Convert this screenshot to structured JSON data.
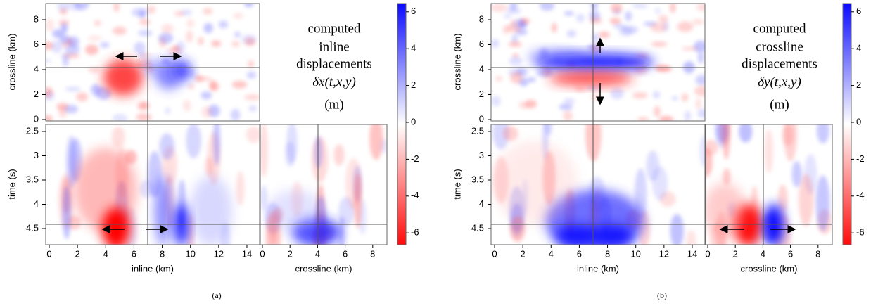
{
  "panels": [
    {
      "caption": "(a)",
      "annotation": [
        "computed",
        "inline",
        "displacements",
        "δx(t,x,y)",
        "(m)"
      ],
      "inline_label": "inline (km)",
      "crossline_label": "crossline (km)",
      "time_label": "time (s)",
      "inline_ticks": [
        "0",
        "2",
        "4",
        "6",
        "8",
        "10",
        "12",
        "14"
      ],
      "crossline_ticks": [
        "0",
        "2",
        "4",
        "6",
        "8"
      ],
      "time_ticks": [
        "2.5",
        "3",
        "3.5",
        "4",
        "4.5"
      ],
      "colorbar_ticks": [
        "6",
        "4",
        "2",
        "0",
        "-2",
        "-4",
        "-6"
      ]
    },
    {
      "caption": "(b)",
      "annotation": [
        "computed",
        "crossline",
        "displacements",
        "δy(t,x,y)",
        "(m)"
      ],
      "inline_label": "inline (km)",
      "crossline_label": "crossline (km)",
      "time_label": "time (s)",
      "inline_ticks": [
        "0",
        "2",
        "4",
        "6",
        "8",
        "10",
        "12",
        "14"
      ],
      "crossline_ticks": [
        "0",
        "2",
        "4",
        "6",
        "8"
      ],
      "time_ticks": [
        "2.5",
        "3",
        "3.5",
        "4",
        "4.5"
      ],
      "colorbar_ticks": [
        "6",
        "4",
        "2",
        "0",
        "-2",
        "-4",
        "-6"
      ]
    }
  ]
}
